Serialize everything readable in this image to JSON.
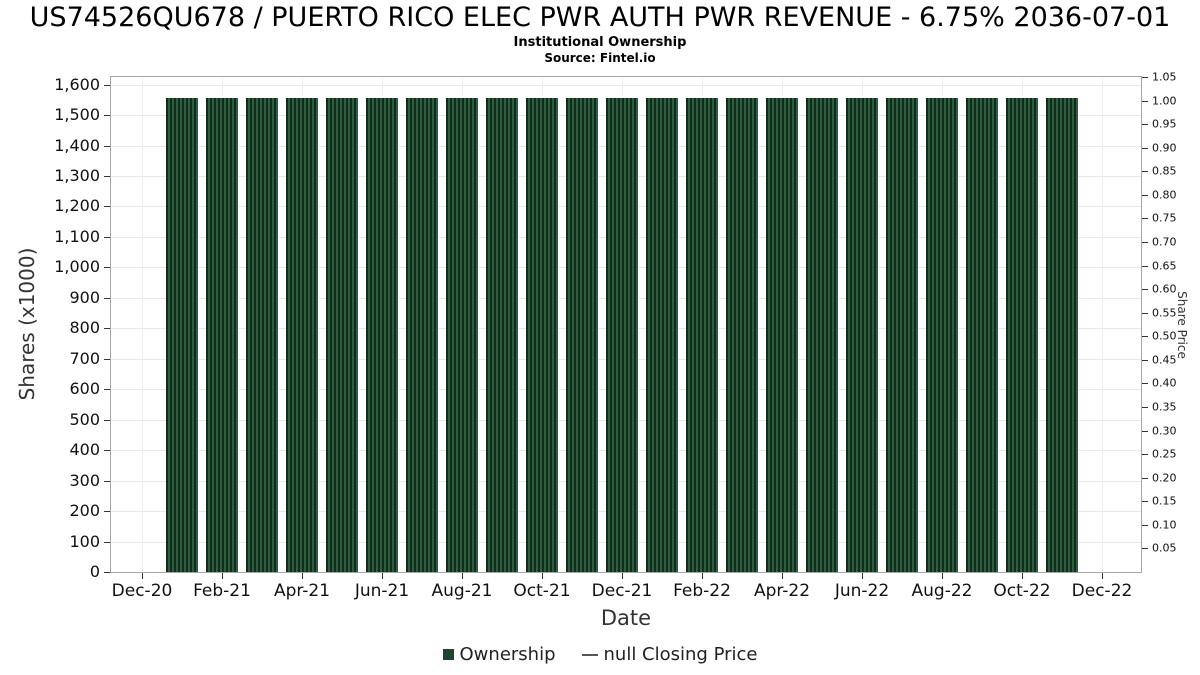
{
  "chart_data": {
    "type": "bar",
    "title": "US74526QU678 / PUERTO RICO ELEC PWR AUTH PWR REVENUE - 6.75% 2036-07-01",
    "subtitle": "Institutional Ownership",
    "source": "Source: Fintel.io",
    "xlabel": "Date",
    "ylabel_left": "Shares (x1000)",
    "ylabel_right": "Share Price",
    "grid": true,
    "legend_position": "bottom",
    "ylim_left": [
      0,
      1625
    ],
    "ylim_right": [
      0,
      1.05
    ],
    "x_ticks": [
      "Dec-20",
      "Feb-21",
      "Apr-21",
      "Jun-21",
      "Aug-21",
      "Oct-21",
      "Dec-21",
      "Feb-22",
      "Apr-22",
      "Jun-22",
      "Aug-22",
      "Oct-22",
      "Dec-22"
    ],
    "left_axis_ticks": [
      "0",
      "100",
      "200",
      "300",
      "400",
      "500",
      "600",
      "700",
      "800",
      "900",
      "1,000",
      "1,100",
      "1,200",
      "1,300",
      "1,400",
      "1,500",
      "1,600"
    ],
    "right_axis_ticks": [
      "0.05",
      "0.10",
      "0.15",
      "0.20",
      "0.25",
      "0.30",
      "0.35",
      "0.40",
      "0.45",
      "0.50",
      "0.55",
      "0.60",
      "0.65",
      "0.70",
      "0.75",
      "0.80",
      "0.85",
      "0.90",
      "0.95",
      "1.00",
      "1.05"
    ],
    "categories": [
      "Jan-21",
      "Feb-21",
      "Mar-21",
      "Apr-21",
      "May-21",
      "Jun-21",
      "Jul-21",
      "Aug-21",
      "Sep-21",
      "Oct-21",
      "Nov-21",
      "Dec-21",
      "Jan-22",
      "Feb-22",
      "Mar-22",
      "Apr-22",
      "May-22",
      "Jun-22",
      "Jul-22",
      "Aug-22",
      "Sep-22",
      "Oct-22",
      "Nov-22"
    ],
    "series": [
      {
        "name": "Ownership",
        "type": "bar",
        "color": "#2f5d40",
        "stripe_color": "#102c1b",
        "values": [
          1557,
          1557,
          1557,
          1557,
          1557,
          1557,
          1557,
          1557,
          1557,
          1557,
          1557,
          1557,
          1557,
          1557,
          1557,
          1557,
          1557,
          1557,
          1557,
          1557,
          1557,
          1557,
          1557
        ]
      },
      {
        "name": "null Closing Price",
        "type": "line",
        "color": "#555555",
        "values": []
      }
    ],
    "legend": [
      {
        "label": "Ownership",
        "marker": "square",
        "color": "#1e4430"
      },
      {
        "label": "null Closing Price",
        "marker": "line",
        "color": "#555555"
      }
    ]
  }
}
